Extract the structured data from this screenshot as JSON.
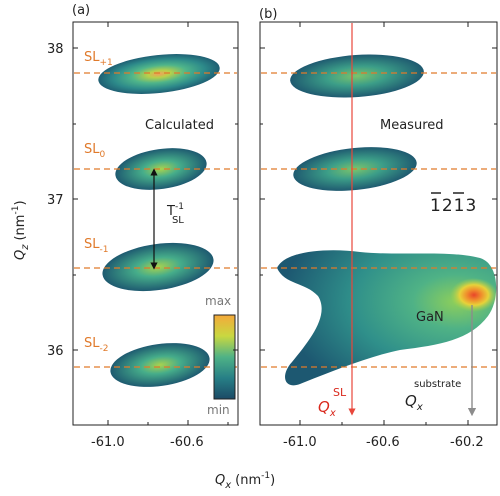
{
  "figure": {
    "panel_a": {
      "letter": "(a)",
      "title": "Calculated",
      "x_ticks": [
        "-61.0",
        "-60.6"
      ],
      "sl_labels": [
        {
          "base": "SL",
          "sub": "+1",
          "qz": 37.87
        },
        {
          "base": "SL",
          "sub": "0",
          "qz": 37.2
        },
        {
          "base": "SL",
          "sub": "-1",
          "qz": 36.54
        },
        {
          "base": "SL",
          "sub": "-2",
          "qz": 35.87
        }
      ],
      "period_label": {
        "base": "T",
        "sup": "-1",
        "sub": "SL"
      },
      "colorbar": {
        "max": "max",
        "min": "min"
      }
    },
    "panel_b": {
      "letter": "(b)",
      "title": "Measured",
      "reflection": "1213",
      "reflection_overbar_digits": [
        0,
        2
      ],
      "x_ticks": [
        "-61.0",
        "-60.6",
        "-60.2"
      ],
      "gan_label": "GaN",
      "qx_sl": {
        "symbol": "Q",
        "sub": "x",
        "sup": "SL",
        "qx": -60.78
      },
      "qx_substrate": {
        "symbol": "Q",
        "sub": "x",
        "sup": "substrate",
        "qx": -60.2
      }
    },
    "y_axis": {
      "label": "Q",
      "label_sub": "z",
      "unit": "(nm",
      "unit_sup": "-1",
      "unit_close": ")",
      "ticks": [
        "38",
        "37",
        "36"
      ]
    },
    "x_axis": {
      "label": "Q",
      "label_sub": "x",
      "unit": "(nm",
      "unit_sup": "-1",
      "unit_close": ")"
    },
    "colors": {
      "accent_orange": "#e07a2b",
      "sl_line_red": "#e8473b",
      "substrate_arrow": "#8c8c8c"
    }
  }
}
